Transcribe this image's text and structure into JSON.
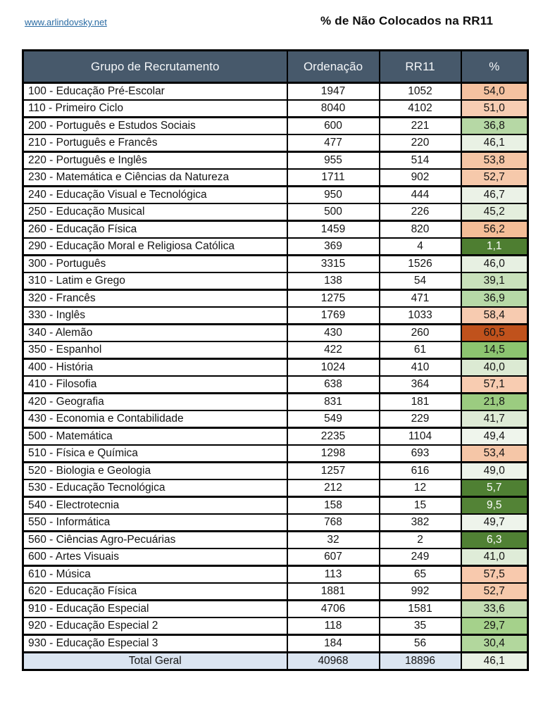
{
  "header": {
    "link": "www.arlindovsky.net",
    "title": "% de Não Colocados na RR11"
  },
  "colors": {
    "header_bg": "#47596b",
    "header_fg": "#f4f6f8",
    "total_row_bg": "#dbe5f1",
    "border": "#000000",
    "link": "#2a6ba3",
    "scale_low_green": "#4e7e31",
    "scale_high_orange": "#c0521c"
  },
  "table": {
    "headers": [
      "Grupo de Recrutamento",
      "Ordenação",
      "RR11",
      "%"
    ],
    "rows": [
      {
        "grupo": "100 - Educação Pré-Escolar",
        "ordenacao": "1947",
        "rr11": "1052",
        "pct": "54,0",
        "pct_bg": "#f5c2a0"
      },
      {
        "grupo": "110 - Primeiro Ciclo",
        "ordenacao": "8040",
        "rr11": "4102",
        "pct": "51,0",
        "pct_bg": "#f7cdb3"
      },
      {
        "grupo": "200 - Português e Estudos Sociais",
        "ordenacao": "600",
        "rr11": "221",
        "pct": "36,8",
        "pct_bg": "#b6d8a5"
      },
      {
        "grupo": "210 - Português e Francês",
        "ordenacao": "477",
        "rr11": "220",
        "pct": "46,1",
        "pct_bg": "#e9f1e4"
      },
      {
        "grupo": "220 - Português e Inglês",
        "ordenacao": "955",
        "rr11": "514",
        "pct": "53,8",
        "pct_bg": "#f5c5a5"
      },
      {
        "grupo": "230 - Matemática e Ciências da Natureza",
        "ordenacao": "1711",
        "rr11": "902",
        "pct": "52,7",
        "pct_bg": "#f6c9ab"
      },
      {
        "grupo": "240 - Educação Visual e Tecnológica",
        "ordenacao": "950",
        "rr11": "444",
        "pct": "46,7",
        "pct_bg": "#ebf2e7"
      },
      {
        "grupo": "250 - Educação Musical",
        "ordenacao": "500",
        "rr11": "226",
        "pct": "45,2",
        "pct_bg": "#e4eedd"
      },
      {
        "grupo": "260 - Educação Física",
        "ordenacao": "1459",
        "rr11": "820",
        "pct": "56,2",
        "pct_bg": "#f4bd97"
      },
      {
        "grupo": "290 - Educação Moral e Religiosa Católica",
        "ordenacao": "369",
        "rr11": "4",
        "pct": "1,1",
        "pct_bg": "#4e7e31",
        "pct_fg": "#ffffff"
      },
      {
        "grupo": "300 - Português",
        "ordenacao": "3315",
        "rr11": "1526",
        "pct": "46,0",
        "pct_bg": "#e7f0e2"
      },
      {
        "grupo": "310 - Latim e Grego",
        "ordenacao": "138",
        "rr11": "54",
        "pct": "39,1",
        "pct_bg": "#c9e1bb"
      },
      {
        "grupo": "320 - Francês",
        "ordenacao": "1275",
        "rr11": "471",
        "pct": "36,9",
        "pct_bg": "#b7d9a7"
      },
      {
        "grupo": "330 - Inglês",
        "ordenacao": "1769",
        "rr11": "1033",
        "pct": "58,4",
        "pct_bg": "#f7cbb0"
      },
      {
        "grupo": "340 - Alemão",
        "ordenacao": "430",
        "rr11": "260",
        "pct": "60,5",
        "pct_bg": "#c0521c"
      },
      {
        "grupo": "350 - Espanhol",
        "ordenacao": "422",
        "rr11": "61",
        "pct": "14,5",
        "pct_bg": "#8cc470"
      },
      {
        "grupo": "400 - História",
        "ordenacao": "1024",
        "rr11": "410",
        "pct": "40,0",
        "pct_bg": "#dcead3"
      },
      {
        "grupo": "410 - Filosofia",
        "ordenacao": "638",
        "rr11": "364",
        "pct": "57,1",
        "pct_bg": "#f8ccb1"
      },
      {
        "grupo": "420 - Geografia",
        "ordenacao": "831",
        "rr11": "181",
        "pct": "21,8",
        "pct_bg": "#9bcc80"
      },
      {
        "grupo": "430 - Economia  e Contabilidade",
        "ordenacao": "549",
        "rr11": "229",
        "pct": "41,7",
        "pct_bg": "#deebd6"
      },
      {
        "grupo": "500 - Matemática",
        "ordenacao": "2235",
        "rr11": "1104",
        "pct": "49,4",
        "pct_bg": "#eff5ec"
      },
      {
        "grupo": "510 - Física e Química",
        "ordenacao": "1298",
        "rr11": "693",
        "pct": "53,4",
        "pct_bg": "#f5c6a7"
      },
      {
        "grupo": "520 - Biologia e Geologia",
        "ordenacao": "1257",
        "rr11": "616",
        "pct": "49,0",
        "pct_bg": "#edf4ea"
      },
      {
        "grupo": "530 - Educação Tecnológica",
        "ordenacao": "212",
        "rr11": "12",
        "pct": "5,7",
        "pct_bg": "#4f8033",
        "pct_fg": "#ffffff"
      },
      {
        "grupo": "540 - Electrotecnia",
        "ordenacao": "158",
        "rr11": "15",
        "pct": "9,5",
        "pct_bg": "#538336",
        "pct_fg": "#ffffff"
      },
      {
        "grupo": "550 - Informática",
        "ordenacao": "768",
        "rr11": "382",
        "pct": "49,7",
        "pct_bg": "#eef4eb"
      },
      {
        "grupo": "560 - Ciências Agro-Pecuárias",
        "ordenacao": "32",
        "rr11": "2",
        "pct": "6,3",
        "pct_bg": "#508134",
        "pct_fg": "#ffffff"
      },
      {
        "grupo": "600 - Artes Visuais",
        "ordenacao": "607",
        "rr11": "249",
        "pct": "41,0",
        "pct_bg": "#dfecd8"
      },
      {
        "grupo": "610 - Música",
        "ordenacao": "113",
        "rr11": "65",
        "pct": "57,5",
        "pct_bg": "#f8c9ad"
      },
      {
        "grupo": "620 - Educação Física",
        "ordenacao": "1881",
        "rr11": "992",
        "pct": "52,7",
        "pct_bg": "#f6c9ab"
      },
      {
        "grupo": "910 - Educação Especial",
        "ordenacao": "4706",
        "rr11": "1581",
        "pct": "33,6",
        "pct_bg": "#c2ddb3"
      },
      {
        "grupo": "920 - Educação Especial 2",
        "ordenacao": "118",
        "rr11": "35",
        "pct": "29,7",
        "pct_bg": "#a5d18b"
      },
      {
        "grupo": "930 - Educação Especial 3",
        "ordenacao": "184",
        "rr11": "56",
        "pct": "30,4",
        "pct_bg": "#b2d79d"
      }
    ],
    "total": {
      "grupo": "Total Geral",
      "ordenacao": "40968",
      "rr11": "18896",
      "pct": "46,1",
      "pct_bg": "#e9f1e4",
      "row_bg": "#dbe5f1"
    }
  }
}
